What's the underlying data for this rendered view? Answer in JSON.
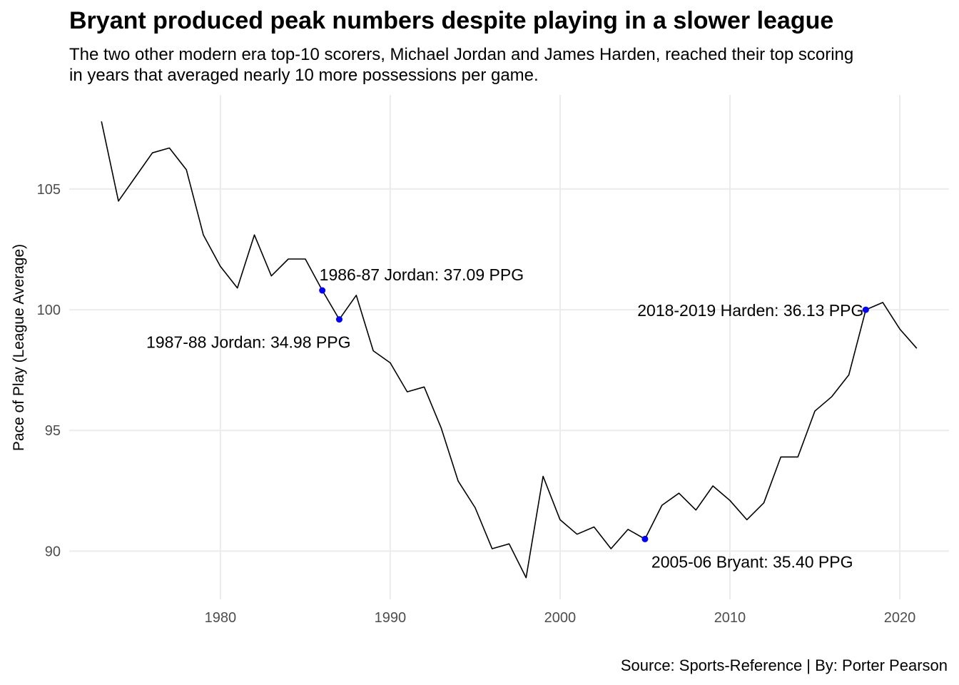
{
  "title": "Bryant produced peak numbers despite playing in a slower league",
  "subtitle_lines": [
    "The two other modern era top-10 scorers, Michael Jordan and James Harden, reached their top scoring",
    "in years that averaged nearly 10 more possessions per game."
  ],
  "caption": "Source: Sports-Reference | By: Porter Pearson",
  "chart_data": {
    "type": "line",
    "xlabel": "",
    "ylabel": "Pace of Play (League Average)",
    "xlim": [
      1971.1,
      2022.9
    ],
    "ylim": [
      88.0,
      108.9
    ],
    "x_ticks": [
      1980,
      1990,
      2000,
      2010,
      2020
    ],
    "y_ticks": [
      90,
      95,
      100,
      105
    ],
    "grid": true,
    "line_color": "#000000",
    "point_color": "#0000ff",
    "series": [
      {
        "x": [
          1973,
          1974,
          1975,
          1976,
          1977,
          1978,
          1979,
          1980,
          1981,
          1982,
          1983,
          1984,
          1985,
          1986,
          1987,
          1988,
          1989,
          1990,
          1991,
          1992,
          1993,
          1994,
          1995,
          1996,
          1997,
          1998,
          1999,
          2000,
          2001,
          2002,
          2003,
          2004,
          2005,
          2006,
          2007,
          2008,
          2009,
          2010,
          2011,
          2012,
          2013,
          2014,
          2015,
          2016,
          2017,
          2018,
          2019,
          2020,
          2021
        ],
        "y": [
          107.8,
          104.5,
          105.5,
          106.5,
          106.7,
          105.8,
          103.1,
          101.8,
          100.9,
          103.1,
          101.4,
          102.1,
          102.1,
          100.8,
          99.6,
          100.6,
          98.3,
          97.8,
          96.6,
          96.8,
          95.1,
          92.9,
          91.8,
          90.1,
          90.3,
          88.9,
          93.1,
          91.3,
          90.7,
          91.0,
          90.1,
          90.9,
          90.5,
          91.9,
          92.4,
          91.7,
          92.7,
          92.1,
          91.3,
          92.0,
          93.9,
          93.9,
          95.8,
          96.4,
          97.3,
          100.0,
          100.3,
          99.2,
          98.4
        ]
      }
    ],
    "highlights": [
      {
        "x": 1986,
        "y": 100.8,
        "label": "1986-87 Jordan: 37.09 PPG",
        "anchor": "start",
        "pos": "above"
      },
      {
        "x": 1987,
        "y": 99.6,
        "label": "1987-88 Jordan: 34.98 PPG",
        "anchor": "end",
        "pos": "below"
      },
      {
        "x": 2005,
        "y": 90.5,
        "label": "2005-06 Bryant: 35.40 PPG",
        "anchor": "start",
        "pos": "below"
      },
      {
        "x": 2018,
        "y": 100.0,
        "label": "2018-2019 Harden: 36.13 PPG",
        "anchor": "end",
        "pos": "left"
      }
    ]
  }
}
